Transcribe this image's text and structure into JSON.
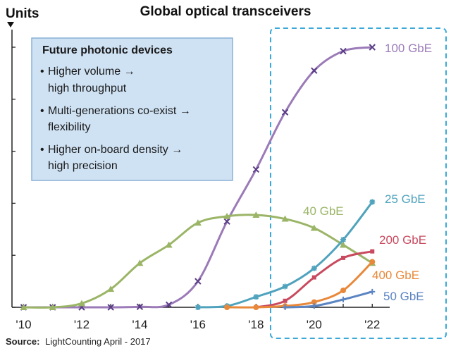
{
  "chart_data": {
    "type": "line",
    "title": "Global optical transceivers",
    "ylabel": "Units",
    "x": [
      2010,
      2011,
      2012,
      2013,
      2014,
      2015,
      2016,
      2017,
      2018,
      2019,
      2020,
      2021,
      2022
    ],
    "x_tick_labels": [
      "'10",
      "'12",
      "'14",
      "'16",
      "'18",
      "'20",
      "'22"
    ],
    "x_ticks": [
      2010,
      2012,
      2014,
      2016,
      2018,
      2020,
      2022
    ],
    "xlim": [
      2009.6,
      2022.6
    ],
    "ylim": [
      0,
      100
    ],
    "y_ticks": [
      0,
      20,
      40,
      60,
      80,
      100
    ],
    "grid": false,
    "series": [
      {
        "name": "100 GbE",
        "color": "#9b7ab8",
        "marker": "x",
        "x": [
          2010,
          2011,
          2012,
          2013,
          2014,
          2015,
          2016,
          2017,
          2018,
          2019,
          2020,
          2021,
          2022
        ],
        "values": [
          0,
          0,
          0,
          0,
          0.2,
          1,
          10,
          33,
          53,
          75,
          91,
          98.5,
          100
        ]
      },
      {
        "name": "40 GbE",
        "color": "#9bb567",
        "marker": "triangle",
        "x": [
          2010,
          2011,
          2012,
          2013,
          2014,
          2015,
          2016,
          2017,
          2018,
          2019,
          2020,
          2021,
          2022
        ],
        "values": [
          0,
          0,
          1.5,
          7,
          17,
          24,
          32.5,
          35,
          35.5,
          34,
          30.5,
          24,
          17
        ]
      },
      {
        "name": "25 GbE",
        "color": "#4fa3bd",
        "marker": "asterisk",
        "x": [
          2016,
          2017,
          2018,
          2019,
          2020,
          2021,
          2022
        ],
        "values": [
          0,
          0.5,
          4,
          8,
          15,
          26,
          40.5
        ]
      },
      {
        "name": "200 GbE",
        "color": "#c94a5f",
        "marker": "square",
        "x": [
          2018,
          2019,
          2020,
          2021,
          2022
        ],
        "values": [
          0,
          2.5,
          11.5,
          19,
          21.5
        ]
      },
      {
        "name": "400 GbE",
        "color": "#e8883a",
        "marker": "circle",
        "x": [
          2017,
          2018,
          2019,
          2020,
          2021,
          2022
        ],
        "values": [
          0,
          0,
          0.5,
          2,
          6.5,
          17.5
        ]
      },
      {
        "name": "50 GbE",
        "color": "#5b84c2",
        "marker": "plus",
        "x": [
          2019,
          2020,
          2021,
          2022
        ],
        "values": [
          0,
          0.5,
          3,
          6
        ]
      }
    ],
    "annotation_box": {
      "title": "Future photonic devices",
      "bullets": [
        [
          "Higher volume →",
          "high throughput"
        ],
        [
          "Multi-generations co-exist →",
          "flexibility"
        ],
        [
          "Higher on-board density →",
          "high precision"
        ]
      ],
      "fill": "#cfe2f4",
      "border": "#8ab0d6"
    },
    "highlight_region": {
      "x": [
        2018.5,
        2022.6
      ],
      "color": "#3aa8d8",
      "style": "dashed"
    },
    "source": {
      "label": "Source:",
      "text": "LightCounting April - 2017"
    }
  }
}
